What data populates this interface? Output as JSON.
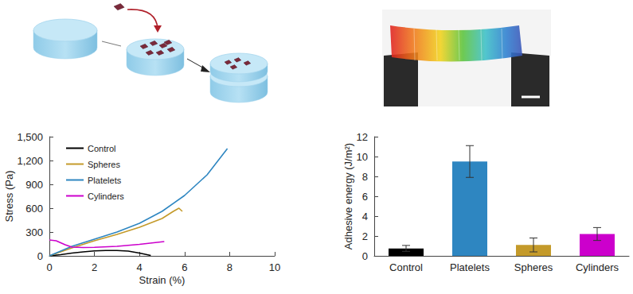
{
  "chart_data": [
    {
      "type": "line",
      "xlabel": "Strain (%)",
      "ylabel": "Stress (Pa)",
      "xlim": [
        0,
        10
      ],
      "xticks": [
        0,
        2,
        4,
        6,
        8,
        10
      ],
      "ylim": [
        0,
        1500
      ],
      "yticks": [
        0,
        300,
        600,
        900,
        1200,
        1500
      ],
      "legend": "upper left",
      "series": [
        {
          "name": "Control",
          "color": "#000000",
          "x": [
            0,
            0.5,
            1,
            1.5,
            2,
            2.5,
            3,
            3.5,
            4,
            4.5
          ],
          "values": [
            0,
            15,
            35,
            50,
            62,
            68,
            68,
            60,
            35,
            5
          ]
        },
        {
          "name": "Spheres",
          "color": "#c49a2a",
          "x": [
            0,
            1,
            2,
            3,
            4,
            5,
            5.5,
            5.75,
            5.9
          ],
          "values": [
            0,
            100,
            190,
            270,
            360,
            470,
            560,
            600,
            560
          ]
        },
        {
          "name": "Platelets",
          "color": "#2e86c1",
          "x": [
            0,
            1,
            2,
            3,
            4,
            5,
            6,
            7,
            7.9
          ],
          "values": [
            0,
            120,
            210,
            300,
            410,
            560,
            760,
            1020,
            1350
          ]
        },
        {
          "name": "Cylinders",
          "color": "#cc00cc",
          "x": [
            0,
            0.3,
            0.7,
            1,
            1.5,
            2,
            3,
            4,
            5.1
          ],
          "values": [
            200,
            190,
            140,
            110,
            105,
            108,
            120,
            145,
            180
          ]
        }
      ]
    },
    {
      "type": "bar",
      "ylabel": "Adhesive energy (J/m²)",
      "categories": [
        "Control",
        "Platelets",
        "Spheres",
        "Cylinders"
      ],
      "values": [
        0.75,
        9.5,
        1.1,
        2.2
      ],
      "errors": [
        0.3,
        1.6,
        0.7,
        0.65
      ],
      "colors": [
        "#000000",
        "#2e86c1",
        "#c49a2a",
        "#cc00cc"
      ],
      "ylim": [
        0,
        12
      ],
      "yticks": [
        0,
        2,
        4,
        6,
        8,
        10,
        12
      ]
    }
  ]
}
